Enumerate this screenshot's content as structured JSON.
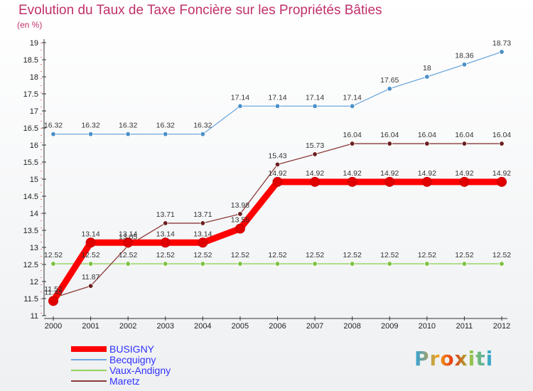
{
  "title": "Evolution du Taux de Taxe Foncière sur les Propriétés Bâties",
  "unit_label": "(en %)",
  "logo_text": "Proxiti",
  "chart_data": {
    "type": "line",
    "title": "Evolution du Taux de Taxe Foncière sur les Propriétés Bâties",
    "ylabel": "(en %)",
    "xlabel": "",
    "x": [
      2000,
      2001,
      2002,
      2003,
      2004,
      2005,
      2006,
      2007,
      2008,
      2009,
      2010,
      2011,
      2012
    ],
    "x_labels": [
      "2000",
      "2001",
      "2002",
      "2003",
      "2004",
      "2005",
      "2006",
      "2007",
      "2008",
      "2009",
      "2010",
      "2011",
      "2012"
    ],
    "ylim": [
      11,
      19
    ],
    "yticks": [
      11,
      11.5,
      12,
      12.5,
      13,
      13.5,
      14,
      14.5,
      15,
      15.5,
      16,
      16.5,
      17,
      17.5,
      18,
      18.5,
      19
    ],
    "ytick_labels": [
      "11",
      "11.5",
      "12",
      "12.5",
      "13",
      "13.5",
      "14",
      "14.5",
      "15",
      "15.5",
      "16",
      "16.5",
      "17",
      "17.5",
      "18",
      "18.5",
      "19"
    ],
    "grid": false,
    "legend_position": "bottom-left",
    "series": [
      {
        "name": "BUSIGNY",
        "color": "#ff0000",
        "marker": "#e00000",
        "values": [
          11.43,
          13.14,
          13.14,
          13.14,
          13.14,
          13.55,
          14.92,
          14.92,
          14.92,
          14.92,
          14.92,
          14.92,
          14.92
        ],
        "labels": [
          "11.43",
          "13.14",
          "13.14",
          "13.14",
          "13.14",
          "13.55",
          "14.92",
          "14.92",
          "14.92",
          "14.92",
          "14.92",
          "14.92",
          "14.92"
        ]
      },
      {
        "name": "Becquigny",
        "color": "#6fa8dc",
        "marker": "#4a90c8",
        "values": [
          16.32,
          16.32,
          16.32,
          16.32,
          16.32,
          17.14,
          17.14,
          17.14,
          17.14,
          17.65,
          18,
          18.36,
          18.73
        ],
        "labels": [
          "16.32",
          "16.32",
          "16.32",
          "16.32",
          "16.32",
          "17.14",
          "17.14",
          "17.14",
          "17.14",
          "17.65",
          "18",
          "18.36",
          "18.73"
        ]
      },
      {
        "name": "Vaux-Andigny",
        "color": "#8ed45a",
        "marker": "#7cc242",
        "values": [
          12.52,
          12.52,
          12.52,
          12.52,
          12.52,
          12.52,
          12.52,
          12.52,
          12.52,
          12.52,
          12.52,
          12.52,
          12.52
        ],
        "labels": [
          "12.52",
          "12.52",
          "12.52",
          "12.52",
          "12.52",
          "12.52",
          "12.52",
          "12.52",
          "12.52",
          "12.52",
          "12.52",
          "12.52",
          "12.52"
        ]
      },
      {
        "name": "Maretz",
        "color": "#8b3a3a",
        "marker": "#6b1f1f",
        "values": [
          11.52,
          11.87,
          13.05,
          13.71,
          13.71,
          13.98,
          15.43,
          15.73,
          16.04,
          16.04,
          16.04,
          16.04,
          16.04
        ],
        "labels": [
          "11.52",
          "11.87",
          "13.05",
          "13.71",
          "13.71",
          "13.98",
          "15.43",
          "15.73",
          "16.04",
          "16.04",
          "16.04",
          "16.04",
          "16.04"
        ]
      }
    ]
  }
}
